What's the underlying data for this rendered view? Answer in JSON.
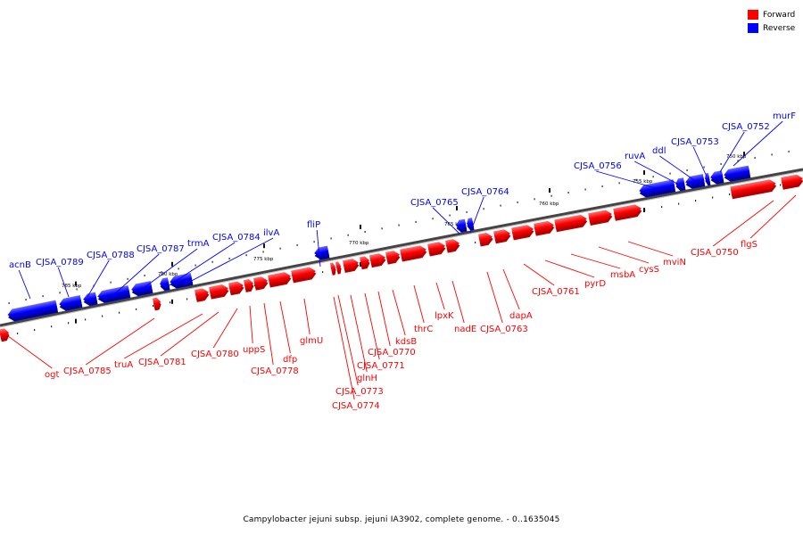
{
  "legend": {
    "forward_label": "Forward",
    "reverse_label": "Reverse",
    "forward_color": "#ff0000",
    "reverse_color": "#0000ff"
  },
  "caption": "Campylobacter jejuni subsp. jejuni IA3902, complete genome. - 0..1635045",
  "genome_map": {
    "ticks": [
      "785 kbp",
      "780 kbp",
      "775 kbp",
      "770 kbp",
      "765 kbp",
      "760 kbp",
      "755 kbp",
      "750 kbp"
    ],
    "genes": [
      {
        "label": "acnB",
        "strand": "reverse"
      },
      {
        "label": "CJSA_0789",
        "strand": "reverse"
      },
      {
        "label": "CJSA_0788",
        "strand": "reverse"
      },
      {
        "label": "CJSA_0787",
        "strand": "reverse"
      },
      {
        "label": "trmA",
        "strand": "reverse"
      },
      {
        "label": "CJSA_0784",
        "strand": "reverse"
      },
      {
        "label": "ilvA",
        "strand": "reverse"
      },
      {
        "label": "fliP",
        "strand": "reverse"
      },
      {
        "label": "CJSA_0765",
        "strand": "reverse"
      },
      {
        "label": "CJSA_0764",
        "strand": "reverse"
      },
      {
        "label": "CJSA_0756",
        "strand": "reverse"
      },
      {
        "label": "ruvA",
        "strand": "reverse"
      },
      {
        "label": "ddl",
        "strand": "reverse"
      },
      {
        "label": "CJSA_0753",
        "strand": "reverse"
      },
      {
        "label": "CJSA_0752",
        "strand": "reverse"
      },
      {
        "label": "murF",
        "strand": "reverse"
      },
      {
        "label": "ogt",
        "strand": "forward"
      },
      {
        "label": "CJSA_0785",
        "strand": "forward"
      },
      {
        "label": "truA",
        "strand": "forward"
      },
      {
        "label": "CJSA_0781",
        "strand": "forward"
      },
      {
        "label": "CJSA_0780",
        "strand": "forward"
      },
      {
        "label": "uppS",
        "strand": "forward"
      },
      {
        "label": "CJSA_0778",
        "strand": "forward"
      },
      {
        "label": "dfp",
        "strand": "forward"
      },
      {
        "label": "glmU",
        "strand": "forward"
      },
      {
        "label": "CJSA_0774",
        "strand": "forward"
      },
      {
        "label": "CJSA_0773",
        "strand": "forward"
      },
      {
        "label": "glnH",
        "strand": "forward"
      },
      {
        "label": "CJSA_0771",
        "strand": "forward"
      },
      {
        "label": "CJSA_0770",
        "strand": "forward"
      },
      {
        "label": "kdsB",
        "strand": "forward"
      },
      {
        "label": "thrC",
        "strand": "forward"
      },
      {
        "label": "lpxK",
        "strand": "forward"
      },
      {
        "label": "nadE",
        "strand": "forward"
      },
      {
        "label": "CJSA_0763",
        "strand": "forward"
      },
      {
        "label": "dapA",
        "strand": "forward"
      },
      {
        "label": "CJSA_0761",
        "strand": "forward"
      },
      {
        "label": "pyrD",
        "strand": "forward"
      },
      {
        "label": "msbA",
        "strand": "forward"
      },
      {
        "label": "cysS",
        "strand": "forward"
      },
      {
        "label": "mviN",
        "strand": "forward"
      },
      {
        "label": "CJSA_0750",
        "strand": "forward"
      },
      {
        "label": "flgS",
        "strand": "forward"
      }
    ]
  }
}
